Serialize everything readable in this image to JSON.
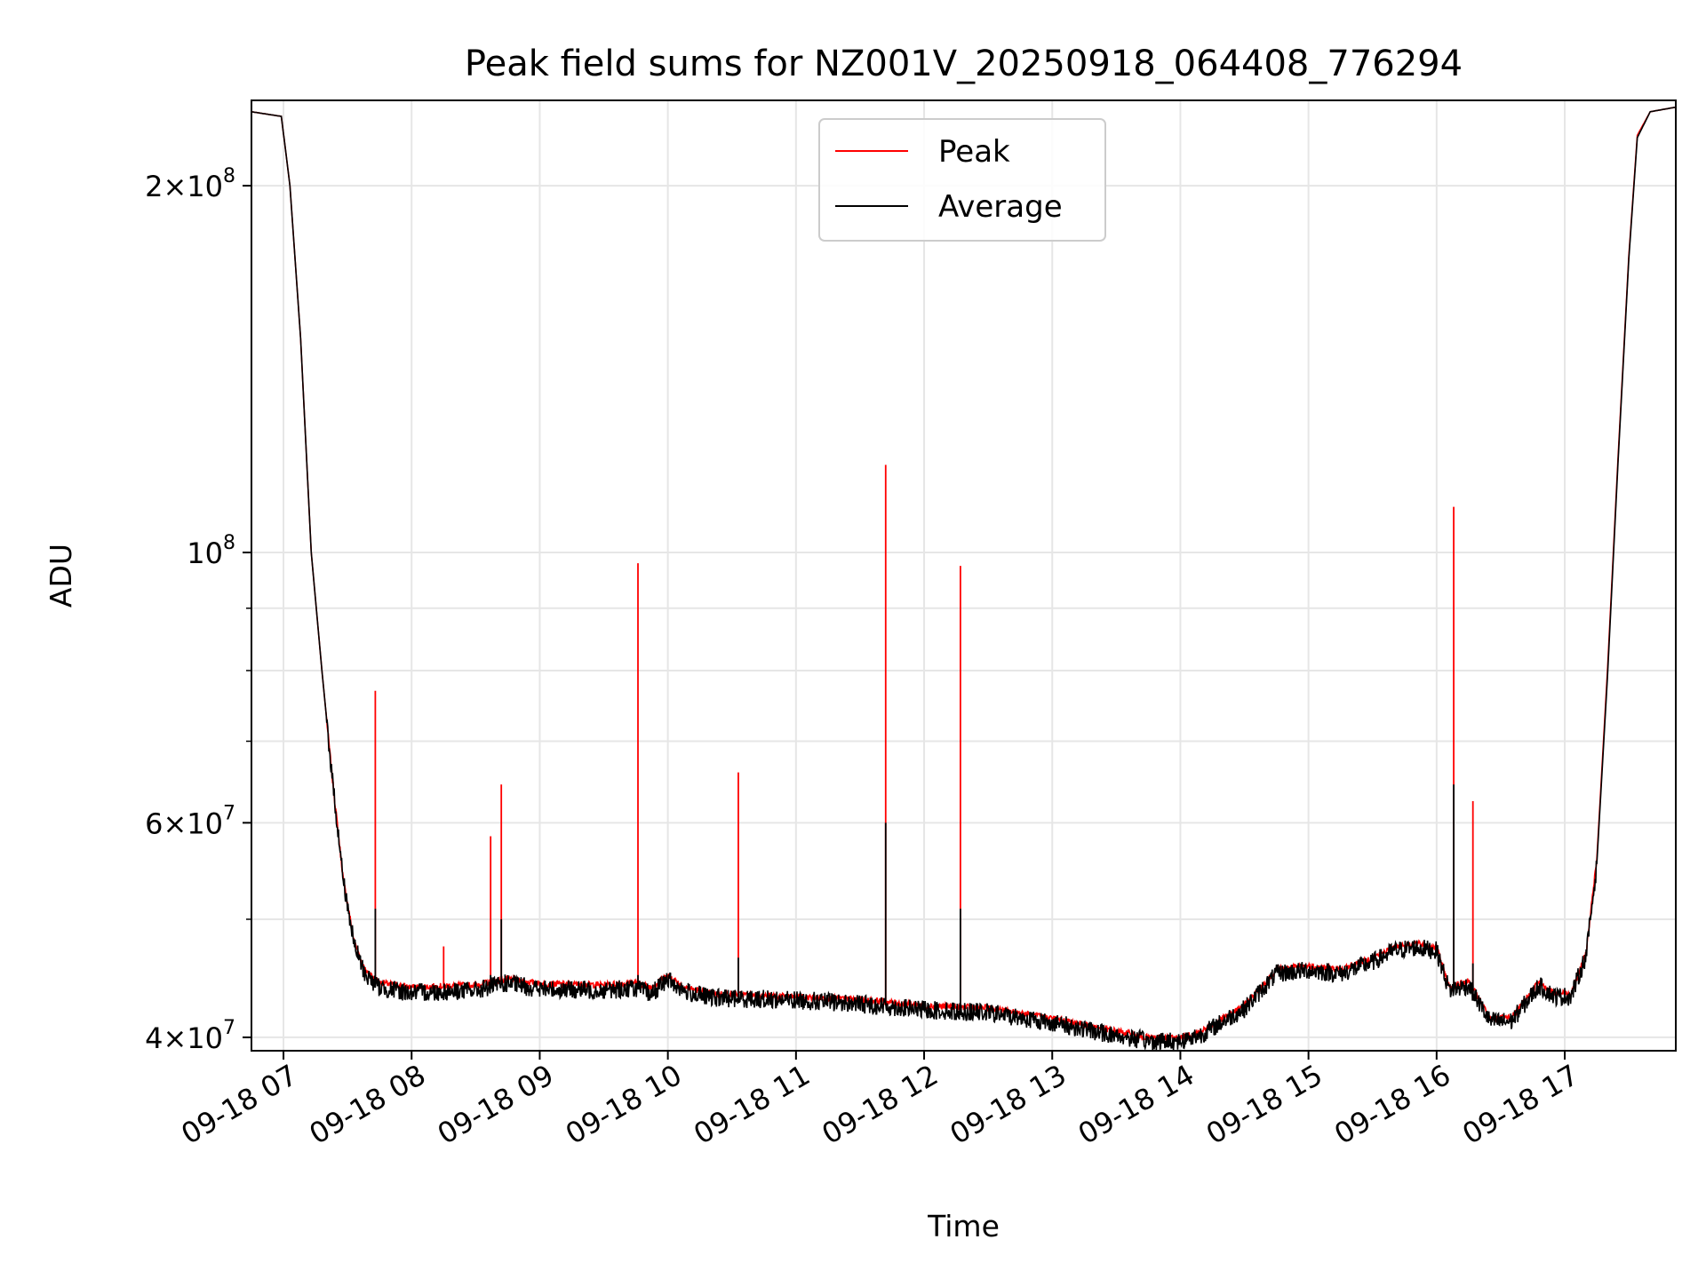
{
  "chart_data": {
    "type": "line",
    "title": "Peak field sums for NZ001V_20250918_064408_776294",
    "xlabel": "Time",
    "ylabel": "ADU",
    "y_scale": "log",
    "ylim": [
      39000000,
      235000000
    ],
    "x_range": [
      "2025-09-18 06:45",
      "2025-09-18 17:52"
    ],
    "x_ticks": [
      {
        "time": "2025-09-18 07:00",
        "label": "09-18 07"
      },
      {
        "time": "2025-09-18 08:00",
        "label": "09-18 08"
      },
      {
        "time": "2025-09-18 09:00",
        "label": "09-18 09"
      },
      {
        "time": "2025-09-18 10:00",
        "label": "09-18 10"
      },
      {
        "time": "2025-09-18 11:00",
        "label": "09-18 11"
      },
      {
        "time": "2025-09-18 12:00",
        "label": "09-18 12"
      },
      {
        "time": "2025-09-18 13:00",
        "label": "09-18 13"
      },
      {
        "time": "2025-09-18 14:00",
        "label": "09-18 14"
      },
      {
        "time": "2025-09-18 15:00",
        "label": "09-18 15"
      },
      {
        "time": "2025-09-18 16:00",
        "label": "09-18 16"
      },
      {
        "time": "2025-09-18 17:00",
        "label": "09-18 17"
      }
    ],
    "y_ticks": [
      {
        "value": 40000000,
        "mantissa": "4",
        "exp": "7"
      },
      {
        "value": 60000000,
        "mantissa": "6",
        "exp": "7"
      },
      {
        "value": 100000000,
        "mantissa": "",
        "exp": "8"
      },
      {
        "value": 200000000,
        "mantissa": "2",
        "exp": "8"
      }
    ],
    "y_minor_grid": [
      50000000,
      70000000,
      80000000,
      90000000
    ],
    "grid": true,
    "legend_position": "top-center",
    "series": [
      {
        "name": "Peak",
        "color": "#ff0000",
        "baseline": [
          [
            "2025-09-18 06:45",
            230000000
          ],
          [
            "2025-09-18 06:59",
            228000000
          ],
          [
            "2025-09-18 07:03",
            200000000
          ],
          [
            "2025-09-18 07:08",
            150000000
          ],
          [
            "2025-09-18 07:13",
            100000000
          ],
          [
            "2025-09-18 07:18",
            80000000
          ],
          [
            "2025-09-18 07:23",
            65000000
          ],
          [
            "2025-09-18 07:28",
            54000000
          ],
          [
            "2025-09-18 07:33",
            48000000
          ],
          [
            "2025-09-18 07:38",
            45500000
          ],
          [
            "2025-09-18 07:45",
            44400000
          ],
          [
            "2025-09-18 08:00",
            44000000
          ],
          [
            "2025-09-18 08:30",
            44200000
          ],
          [
            "2025-09-18 08:45",
            44700000
          ],
          [
            "2025-09-18 09:00",
            44300000
          ],
          [
            "2025-09-18 09:30",
            44200000
          ],
          [
            "2025-09-18 09:45",
            44400000
          ],
          [
            "2025-09-18 09:52",
            44000000
          ],
          [
            "2025-09-18 10:00",
            45000000
          ],
          [
            "2025-09-18 10:08",
            44000000
          ],
          [
            "2025-09-18 10:20",
            43500000
          ],
          [
            "2025-09-18 11:00",
            43200000
          ],
          [
            "2025-09-18 11:30",
            43000000
          ],
          [
            "2025-09-18 12:00",
            42500000
          ],
          [
            "2025-09-18 12:30",
            42300000
          ],
          [
            "2025-09-18 13:00",
            41500000
          ],
          [
            "2025-09-18 13:15",
            41000000
          ],
          [
            "2025-09-18 13:30",
            40500000
          ],
          [
            "2025-09-18 13:45",
            40000000
          ],
          [
            "2025-09-18 14:00",
            40000000
          ],
          [
            "2025-09-18 14:10",
            40500000
          ],
          [
            "2025-09-18 14:20",
            41500000
          ],
          [
            "2025-09-18 14:30",
            42500000
          ],
          [
            "2025-09-18 14:45",
            45500000
          ],
          [
            "2025-09-18 15:00",
            45800000
          ],
          [
            "2025-09-18 15:15",
            45500000
          ],
          [
            "2025-09-18 15:30",
            46500000
          ],
          [
            "2025-09-18 15:40",
            47500000
          ],
          [
            "2025-09-18 15:50",
            47800000
          ],
          [
            "2025-09-18 16:00",
            47500000
          ],
          [
            "2025-09-18 16:06",
            44000000
          ],
          [
            "2025-09-18 16:15",
            44500000
          ],
          [
            "2025-09-18 16:25",
            41500000
          ],
          [
            "2025-09-18 16:35",
            41500000
          ],
          [
            "2025-09-18 16:48",
            44500000
          ],
          [
            "2025-09-18 16:55",
            43500000
          ],
          [
            "2025-09-18 17:03",
            43500000
          ],
          [
            "2025-09-18 17:10",
            47000000
          ],
          [
            "2025-09-18 17:15",
            56000000
          ],
          [
            "2025-09-18 17:20",
            80000000
          ],
          [
            "2025-09-18 17:25",
            120000000
          ],
          [
            "2025-09-18 17:30",
            175000000
          ],
          [
            "2025-09-18 17:34",
            220000000
          ],
          [
            "2025-09-18 17:40",
            230000000
          ],
          [
            "2025-09-18 17:52",
            232000000
          ]
        ],
        "spikes": [
          [
            "2025-09-18 07:43",
            77000000
          ],
          [
            "2025-09-18 08:15",
            47500000
          ],
          [
            "2025-09-18 08:37",
            58500000
          ],
          [
            "2025-09-18 08:42",
            64500000
          ],
          [
            "2025-09-18 09:46",
            98000000
          ],
          [
            "2025-09-18 10:33",
            66000000
          ],
          [
            "2025-09-18 11:42",
            118000000
          ],
          [
            "2025-09-18 12:17",
            97500000
          ],
          [
            "2025-09-18 16:08",
            109000000
          ],
          [
            "2025-09-18 16:17",
            62500000
          ]
        ]
      },
      {
        "name": "Average",
        "color": "#000000",
        "baseline": [
          [
            "2025-09-18 06:45",
            230000000
          ],
          [
            "2025-09-18 06:59",
            228000000
          ],
          [
            "2025-09-18 07:03",
            200000000
          ],
          [
            "2025-09-18 07:08",
            150000000
          ],
          [
            "2025-09-18 07:13",
            100000000
          ],
          [
            "2025-09-18 07:18",
            80000000
          ],
          [
            "2025-09-18 07:23",
            65000000
          ],
          [
            "2025-09-18 07:28",
            54000000
          ],
          [
            "2025-09-18 07:33",
            47800000
          ],
          [
            "2025-09-18 07:38",
            45200000
          ],
          [
            "2025-09-18 07:45",
            44000000
          ],
          [
            "2025-09-18 08:00",
            43600000
          ],
          [
            "2025-09-18 08:30",
            43800000
          ],
          [
            "2025-09-18 08:45",
            44400000
          ],
          [
            "2025-09-18 09:00",
            43900000
          ],
          [
            "2025-09-18 09:30",
            43800000
          ],
          [
            "2025-09-18 09:45",
            44000000
          ],
          [
            "2025-09-18 09:52",
            43500000
          ],
          [
            "2025-09-18 10:00",
            44700000
          ],
          [
            "2025-09-18 10:08",
            43700000
          ],
          [
            "2025-09-18 10:20",
            43200000
          ],
          [
            "2025-09-18 11:00",
            43000000
          ],
          [
            "2025-09-18 11:30",
            42700000
          ],
          [
            "2025-09-18 12:00",
            42200000
          ],
          [
            "2025-09-18 12:30",
            42000000
          ],
          [
            "2025-09-18 13:00",
            41200000
          ],
          [
            "2025-09-18 13:15",
            40700000
          ],
          [
            "2025-09-18 13:30",
            40200000
          ],
          [
            "2025-09-18 13:45",
            39800000
          ],
          [
            "2025-09-18 14:00",
            39800000
          ],
          [
            "2025-09-18 14:10",
            40300000
          ],
          [
            "2025-09-18 14:20",
            41300000
          ],
          [
            "2025-09-18 14:30",
            42300000
          ],
          [
            "2025-09-18 14:45",
            45200000
          ],
          [
            "2025-09-18 15:00",
            45500000
          ],
          [
            "2025-09-18 15:15",
            45200000
          ],
          [
            "2025-09-18 15:30",
            46200000
          ],
          [
            "2025-09-18 15:40",
            47200000
          ],
          [
            "2025-09-18 15:50",
            47500000
          ],
          [
            "2025-09-18 16:00",
            47200000
          ],
          [
            "2025-09-18 16:06",
            43800000
          ],
          [
            "2025-09-18 16:15",
            44200000
          ],
          [
            "2025-09-18 16:25",
            41300000
          ],
          [
            "2025-09-18 16:35",
            41300000
          ],
          [
            "2025-09-18 16:48",
            44200000
          ],
          [
            "2025-09-18 16:55",
            43300000
          ],
          [
            "2025-09-18 17:03",
            43300000
          ],
          [
            "2025-09-18 17:10",
            46800000
          ],
          [
            "2025-09-18 17:15",
            55500000
          ],
          [
            "2025-09-18 17:20",
            79000000
          ],
          [
            "2025-09-18 17:25",
            119000000
          ],
          [
            "2025-09-18 17:30",
            174000000
          ],
          [
            "2025-09-18 17:34",
            219000000
          ],
          [
            "2025-09-18 17:40",
            230000000
          ],
          [
            "2025-09-18 17:52",
            232000000
          ]
        ],
        "spikes": [
          [
            "2025-09-18 07:43",
            51000000
          ],
          [
            "2025-09-18 08:37",
            45000000
          ],
          [
            "2025-09-18 08:42",
            50000000
          ],
          [
            "2025-09-18 09:46",
            45000000
          ],
          [
            "2025-09-18 10:33",
            46500000
          ],
          [
            "2025-09-18 11:42",
            60000000
          ],
          [
            "2025-09-18 12:17",
            51000000
          ],
          [
            "2025-09-18 16:08",
            64500000
          ],
          [
            "2025-09-18 16:17",
            46000000
          ]
        ]
      }
    ]
  }
}
